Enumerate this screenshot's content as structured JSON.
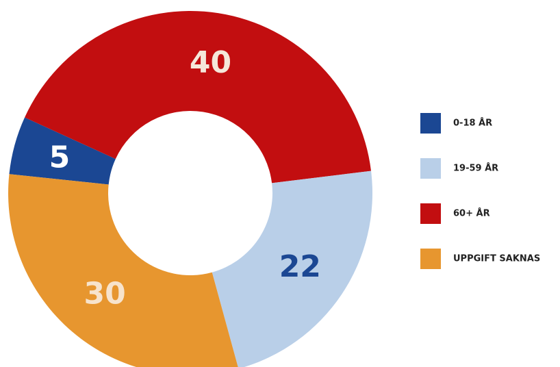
{
  "chart_data": {
    "type": "donut",
    "categories": [
      "0-18 ÅR",
      "19-59 ÅR",
      "60+ ÅR",
      "UPPGIFT SAKNAS"
    ],
    "values": [
      5,
      22,
      40,
      30
    ],
    "colors": [
      "#1b4793",
      "#b9cfe8",
      "#c20e10",
      "#e7962f"
    ],
    "label_colors": [
      "#ffffff",
      "#1b4793",
      "#f5e7da",
      "#f7e3cc"
    ],
    "legend": "right"
  }
}
